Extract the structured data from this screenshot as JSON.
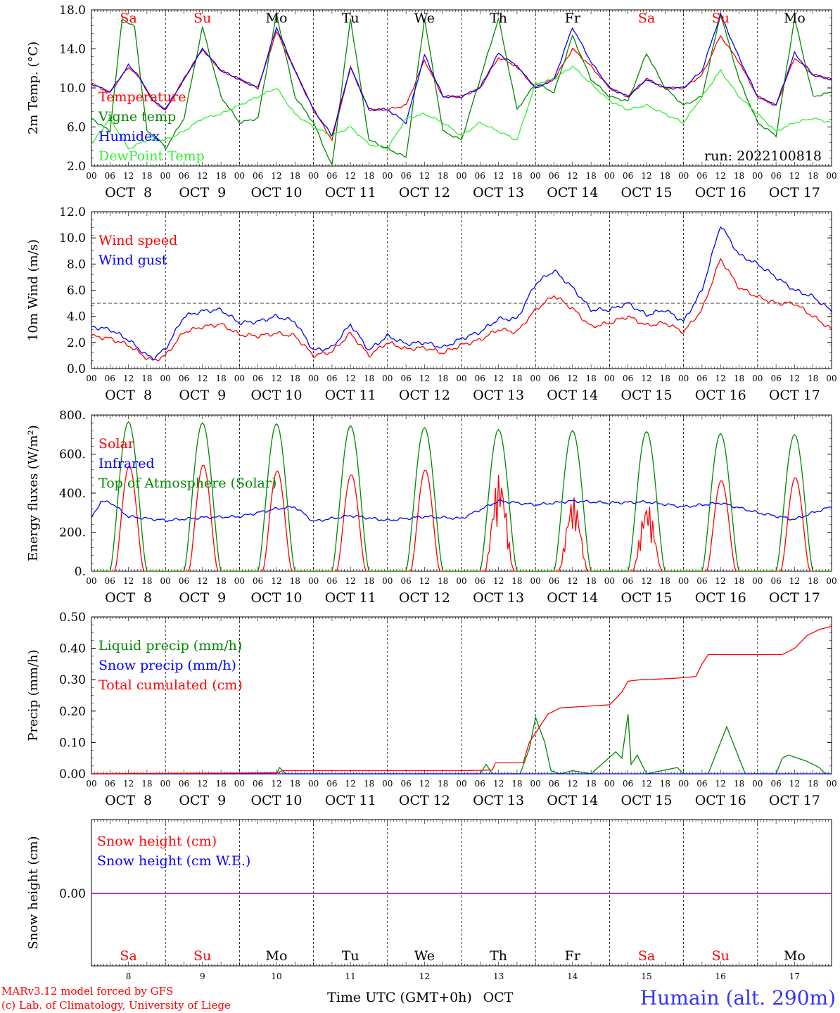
{
  "day_abbrevs": [
    "Sa",
    "Su",
    "Mo",
    "Tu",
    "We",
    "Th",
    "Fr",
    "Sa",
    "Su",
    "Mo"
  ],
  "day_abbrev_colors": [
    "#ff0000",
    "#ff0000",
    "#000000",
    "#000000",
    "#000000",
    "#000000",
    "#000000",
    "#ff0000",
    "#ff0000",
    "#000000"
  ],
  "date_labels": [
    "OCT  8",
    "OCT  9",
    "OCT 10",
    "OCT 11",
    "OCT 12",
    "OCT 13",
    "OCT 14",
    "OCT 15",
    "OCT 16",
    "OCT 17"
  ],
  "hour_labels": [
    "00",
    "06",
    "12",
    "18"
  ],
  "bottom_day_numbers": [
    "8",
    "9",
    "10",
    "11",
    "12",
    "13",
    "14",
    "15",
    "16",
    "17"
  ],
  "xaxis_title": "Time UTC (GMT+0h)",
  "month_label": "OCT",
  "credit_line1": "MARv3.12 model forced by GFS",
  "credit_line2": "(c) Lab. of Climatology, University of Liege",
  "station_title": "Humain (alt. 290m)",
  "colors": {
    "red": "#ff0000",
    "green": "#008800",
    "blue": "#0000ff",
    "lightgreen": "#33ee33",
    "purple": "#8800aa"
  },
  "chart_data": [
    {
      "type": "line",
      "ylabel": "2m Temp. (°C)",
      "ylim": [
        2,
        20
      ],
      "yticks": [
        "2.0",
        "6.0",
        "10.0",
        "14.0",
        "18.0"
      ],
      "annotation": "run: 2022100818",
      "x_unit": "hours since OCT 8 00 UTC",
      "series": [
        {
          "name": "Temperature",
          "color": "#ff0000",
          "x": [
            0,
            6,
            12,
            15,
            20,
            24,
            30,
            36,
            42,
            48,
            54,
            60,
            66,
            72,
            78,
            84,
            90,
            96,
            102,
            108,
            114,
            120,
            126,
            132,
            138,
            144,
            150,
            156,
            162,
            168,
            174,
            180,
            186,
            192,
            198,
            204,
            210,
            216,
            222,
            228,
            234,
            240
          ],
          "y": [
            11.5,
            10.5,
            13.4,
            12.5,
            9.5,
            8.5,
            12,
            15.5,
            13,
            12,
            11,
            17.5,
            13,
            8.5,
            5,
            13.4,
            8.5,
            8.5,
            9,
            14.2,
            10,
            10,
            11,
            14.5,
            13.5,
            11,
            12,
            15.5,
            13.5,
            11,
            10,
            12,
            11,
            11,
            12.5,
            17,
            14,
            10,
            9,
            14.5,
            12.5,
            12
          ]
        },
        {
          "name": "Vigne temp",
          "color": "#008800",
          "x": [
            0,
            6,
            10,
            14,
            18,
            22,
            24,
            30,
            36,
            42,
            48,
            54,
            60,
            66,
            72,
            78,
            84,
            90,
            96,
            102,
            108,
            114,
            120,
            126,
            132,
            138,
            144,
            150,
            156,
            162,
            168,
            174,
            180,
            186,
            192,
            198,
            204,
            210,
            216,
            222,
            228,
            234,
            240
          ],
          "y": [
            7.5,
            6,
            19,
            18,
            6,
            5,
            4,
            7.5,
            18,
            10,
            7,
            7.5,
            19.5,
            10,
            7,
            2,
            19,
            5,
            4,
            3,
            19,
            6,
            5,
            12,
            19,
            8.5,
            11.5,
            10.5,
            17,
            12,
            10,
            9.5,
            15,
            11,
            9,
            10,
            19.5,
            12,
            7,
            5.5,
            19,
            10,
            10.5
          ]
        },
        {
          "name": "Humidex",
          "color": "#0000ff",
          "x": [
            0,
            6,
            12,
            15,
            20,
            24,
            30,
            36,
            42,
            48,
            54,
            60,
            66,
            72,
            78,
            84,
            90,
            96,
            102,
            108,
            114,
            120,
            126,
            132,
            138,
            144,
            150,
            156,
            162,
            168,
            174,
            180,
            186,
            192,
            198,
            204,
            210,
            216,
            222,
            228,
            234,
            240
          ],
          "y": [
            11.5,
            10.5,
            13.6,
            12.5,
            9.5,
            8.5,
            12,
            15.5,
            13,
            12,
            11,
            18,
            13,
            8.5,
            5.5,
            13.4,
            8.5,
            8.5,
            7,
            14.8,
            10,
            10,
            11,
            15,
            13.5,
            11,
            12,
            18,
            14,
            11,
            10,
            12,
            11,
            11,
            13,
            19.5,
            14.5,
            10,
            9,
            15,
            12.5,
            12
          ]
        },
        {
          "name": "DewPoint Temp",
          "color": "#33ee33",
          "x": [
            0,
            6,
            12,
            18,
            24,
            30,
            36,
            42,
            48,
            54,
            60,
            66,
            72,
            78,
            84,
            90,
            96,
            102,
            108,
            114,
            120,
            126,
            132,
            138,
            144,
            150,
            156,
            162,
            168,
            174,
            180,
            186,
            192,
            198,
            204,
            210,
            216,
            222,
            228,
            234,
            240
          ],
          "y": [
            4.5,
            7.5,
            4,
            5,
            5,
            6,
            7.5,
            8,
            9,
            10,
            11,
            8,
            6.5,
            5.5,
            6.5,
            4.5,
            4,
            7.5,
            8,
            7,
            5.5,
            7,
            6,
            5,
            11.5,
            12,
            13.5,
            11.5,
            9.5,
            8.5,
            9,
            8,
            7,
            10,
            13,
            10,
            8,
            6,
            7,
            7.5,
            7
          ]
        }
      ]
    },
    {
      "type": "line",
      "ylabel": "10m Wind (m/s)",
      "ylim": [
        0,
        12
      ],
      "yticks": [
        "0.0",
        "2.0",
        "4.0",
        "6.0",
        "8.0",
        "10.0",
        "12.0"
      ],
      "reference_line": 5,
      "series": [
        {
          "name": "Wind speed",
          "color": "#ff0000",
          "x": [
            0,
            6,
            12,
            18,
            20,
            24,
            30,
            36,
            42,
            48,
            54,
            60,
            66,
            72,
            78,
            84,
            90,
            96,
            102,
            108,
            114,
            120,
            126,
            132,
            138,
            144,
            150,
            156,
            162,
            168,
            174,
            180,
            186,
            192,
            198,
            204,
            210,
            216,
            222,
            228,
            234,
            240
          ],
          "y": [
            2.5,
            2.3,
            1.8,
            0.8,
            0.6,
            1,
            2.8,
            3.2,
            3.4,
            2.6,
            2.5,
            2.7,
            2.5,
            1,
            1.3,
            2.7,
            1,
            2,
            1.5,
            1.6,
            1.2,
            1.8,
            2.2,
            3,
            2.8,
            4.5,
            5.6,
            4.6,
            3.2,
            3.5,
            4,
            3.3,
            3.5,
            2.8,
            4.5,
            8.4,
            6.2,
            5.5,
            5,
            5,
            4,
            3
          ]
        },
        {
          "name": "Wind gust",
          "color": "#0000ff",
          "x": [
            0,
            6,
            12,
            18,
            20,
            24,
            30,
            36,
            42,
            48,
            54,
            60,
            66,
            72,
            78,
            84,
            90,
            96,
            102,
            108,
            114,
            120,
            126,
            132,
            138,
            144,
            150,
            156,
            162,
            168,
            174,
            180,
            186,
            192,
            198,
            204,
            210,
            216,
            222,
            228,
            234,
            240
          ],
          "y": [
            3.2,
            3,
            2.2,
            1,
            0.8,
            1.5,
            4,
            4.4,
            4.5,
            3.5,
            3.6,
            4,
            3.6,
            1.4,
            1.6,
            3.4,
            1.4,
            2.5,
            1.9,
            2,
            1.6,
            2.3,
            2.8,
            3.8,
            3.8,
            6.5,
            7.5,
            6.2,
            4.5,
            4.5,
            5,
            4.1,
            4.5,
            3.6,
            6,
            11,
            8.7,
            8,
            7,
            6,
            5.5,
            4.4
          ]
        }
      ]
    },
    {
      "type": "line",
      "ylabel": "Energy fluxes (W/m²)",
      "ylim": [
        0,
        800
      ],
      "yticks": [
        "0.",
        "200.",
        "400.",
        "600.",
        "800."
      ],
      "series": [
        {
          "name": "Solar",
          "color": "#ff0000",
          "peaks": [
            540,
            545,
            515,
            495,
            520,
            500,
            380,
            350,
            465,
            480
          ],
          "peak_hour": 12
        },
        {
          "name": "Infrared",
          "color": "#0000ff",
          "x": [
            0,
            3,
            6,
            12,
            18,
            24,
            36,
            48,
            60,
            66,
            72,
            84,
            96,
            108,
            120,
            132,
            144,
            156,
            168,
            180,
            192,
            204,
            216,
            228,
            234,
            240
          ],
          "y": [
            275,
            355,
            355,
            280,
            270,
            260,
            275,
            280,
            320,
            330,
            255,
            285,
            260,
            280,
            270,
            360,
            340,
            360,
            350,
            355,
            330,
            350,
            300,
            265,
            300,
            330
          ]
        },
        {
          "name": "Top of Atmosphere (Solar)",
          "color": "#008800",
          "peaks": [
            765,
            760,
            755,
            745,
            735,
            725,
            720,
            715,
            705,
            700
          ],
          "sunrise": 6,
          "sunset": 18
        }
      ]
    },
    {
      "type": "line",
      "ylabel": "Precip (mm/h)",
      "ylim": [
        0,
        0.5
      ],
      "yticks": [
        "0.00",
        "0.10",
        "0.20",
        "0.30",
        "0.40",
        "0.50"
      ],
      "series": [
        {
          "name": "Liquid precip (mm/h)",
          "color": "#008800",
          "x": [
            0,
            60,
            61,
            63,
            120,
            126,
            128,
            130,
            139,
            142,
            144,
            147,
            149,
            152,
            156,
            162,
            170,
            172,
            174,
            175,
            177,
            180,
            190,
            192,
            200,
            206,
            212,
            218,
            222,
            224,
            226,
            232,
            236,
            238,
            240
          ],
          "y": [
            0,
            0,
            0.02,
            0,
            0,
            0,
            0.03,
            0,
            0,
            0.08,
            0.18,
            0.1,
            0.01,
            0,
            0.01,
            0,
            0.07,
            0.05,
            0.19,
            0.03,
            0.06,
            0,
            0.02,
            0,
            0,
            0.15,
            0,
            0,
            0,
            0.05,
            0.06,
            0.04,
            0.02,
            0,
            0
          ]
        },
        {
          "name": "Snow precip (mm/h)",
          "color": "#0000ff",
          "x": [
            0,
            240
          ],
          "y": [
            0,
            0
          ]
        },
        {
          "name": "Total cumulated (cm)",
          "color": "#ff0000",
          "x": [
            0,
            60,
            62,
            120,
            130,
            131,
            140,
            142,
            146,
            148,
            150,
            152,
            160,
            168,
            172,
            174,
            178,
            180,
            190,
            196,
            198,
            200,
            210,
            220,
            224,
            228,
            232,
            236,
            240
          ],
          "y": [
            0,
            0.003,
            0.01,
            0.01,
            0.012,
            0.035,
            0.035,
            0.1,
            0.16,
            0.19,
            0.2,
            0.21,
            0.215,
            0.22,
            0.26,
            0.295,
            0.3,
            0.3,
            0.305,
            0.31,
            0.35,
            0.38,
            0.38,
            0.38,
            0.38,
            0.4,
            0.44,
            0.46,
            0.47
          ]
        }
      ]
    },
    {
      "type": "line",
      "ylabel": "Snow height (cm)",
      "yticks": [
        "0.00"
      ],
      "series": [
        {
          "name": "Snow height (cm)",
          "color": "#ff0000",
          "x": [
            0,
            240
          ],
          "y": [
            0,
            0
          ]
        },
        {
          "name": "Snow height (cm W.E.)",
          "color": "#0000ff",
          "x": [
            0,
            240
          ],
          "y": [
            0,
            0
          ]
        }
      ]
    }
  ]
}
